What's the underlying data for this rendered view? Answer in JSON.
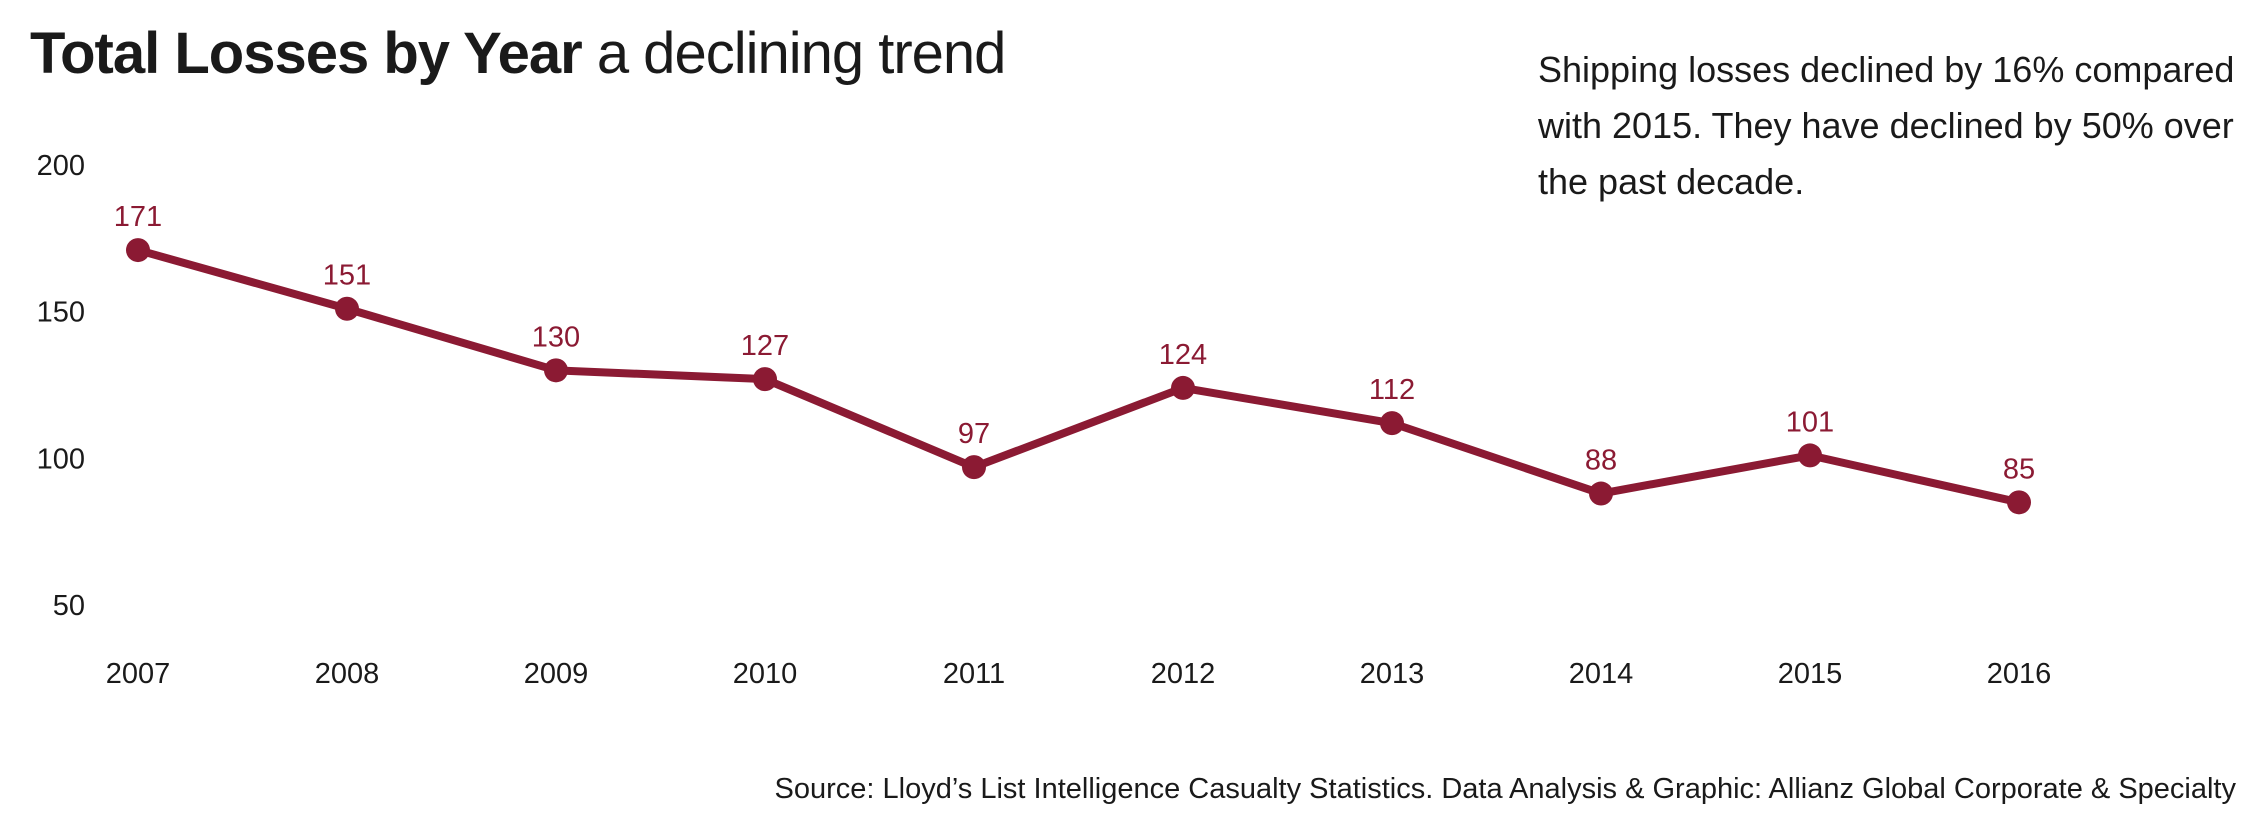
{
  "header": {
    "title_main": "Total Losses by Year",
    "title_sub": "a declining trend"
  },
  "note": "Shipping losses declined by 16% compared with 2015. They have declined by 50% over the past decade.",
  "source": "Source: Lloyd’s List Intelligence Casualty Statistics.  Data Analysis & Graphic: Allianz Global Corporate & Specialty",
  "chart_data": {
    "type": "line",
    "title": "Total Losses by Year a declining trend",
    "xlabel": "",
    "ylabel": "",
    "categories": [
      "2007",
      "2008",
      "2009",
      "2010",
      "2011",
      "2012",
      "2013",
      "2014",
      "2015",
      "2016"
    ],
    "series": [
      {
        "values": [
          171,
          151,
          130,
          127,
          97,
          124,
          112,
          88,
          101,
          85
        ],
        "color": "#8b1a33"
      }
    ],
    "ylim": [
      50,
      200
    ],
    "yticks": [
      50,
      100,
      150,
      200
    ],
    "data_labels": true,
    "grid": false,
    "legend": "none"
  }
}
